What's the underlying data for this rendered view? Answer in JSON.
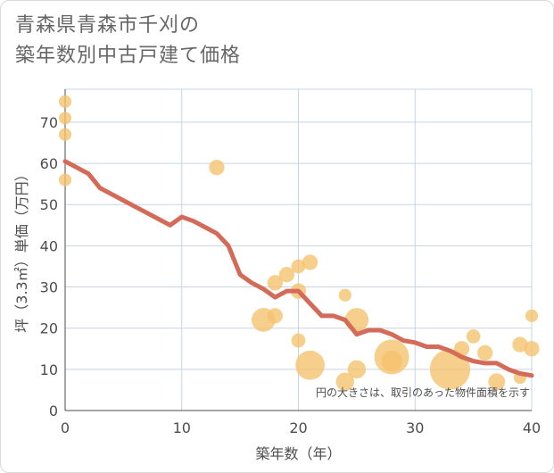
{
  "title_line1": "青森県青森市千刈の",
  "title_line2": "築年数別中古戸建て価格",
  "chart_data": {
    "type": "scatter",
    "title": "青森県青森市千刈の築年数別中古戸建て価格",
    "xlabel": "築年数（年）",
    "ylabel": "坪（3.3㎡）単価（万円）",
    "xlim": [
      0,
      40
    ],
    "ylim": [
      0,
      75
    ],
    "x_ticks": [
      0,
      10,
      20,
      30,
      40
    ],
    "y_ticks": [
      0,
      10,
      20,
      30,
      40,
      50,
      60,
      70
    ],
    "grid": true,
    "annotation": "円の大きさは、取引のあった物件面積を示す",
    "bubble_color": "#f5c16c",
    "line_color": "#d46b58",
    "scatter": [
      {
        "x": 0,
        "y": 75,
        "size": 2
      },
      {
        "x": 0,
        "y": 71,
        "size": 2
      },
      {
        "x": 0,
        "y": 67,
        "size": 2
      },
      {
        "x": 0,
        "y": 56,
        "size": 2
      },
      {
        "x": 13,
        "y": 59,
        "size": 3
      },
      {
        "x": 17,
        "y": 22,
        "size": 6
      },
      {
        "x": 18,
        "y": 23,
        "size": 3
      },
      {
        "x": 18,
        "y": 31,
        "size": 3
      },
      {
        "x": 19,
        "y": 33,
        "size": 3
      },
      {
        "x": 20,
        "y": 35,
        "size": 2.5
      },
      {
        "x": 20,
        "y": 29,
        "size": 3
      },
      {
        "x": 20,
        "y": 17,
        "size": 2.5
      },
      {
        "x": 21,
        "y": 36,
        "size": 3
      },
      {
        "x": 21,
        "y": 11,
        "size": 8
      },
      {
        "x": 24,
        "y": 28,
        "size": 2
      },
      {
        "x": 24,
        "y": 7,
        "size": 4
      },
      {
        "x": 25,
        "y": 22,
        "size": 6
      },
      {
        "x": 25,
        "y": 10,
        "size": 4
      },
      {
        "x": 28,
        "y": 13,
        "size": 10
      },
      {
        "x": 28,
        "y": 12,
        "size": 5
      },
      {
        "x": 33,
        "y": 10,
        "size": 12
      },
      {
        "x": 34,
        "y": 15,
        "size": 3
      },
      {
        "x": 35,
        "y": 18,
        "size": 2.5
      },
      {
        "x": 36,
        "y": 14,
        "size": 3
      },
      {
        "x": 37,
        "y": 7,
        "size": 3.5
      },
      {
        "x": 39,
        "y": 16,
        "size": 3
      },
      {
        "x": 39,
        "y": 8,
        "size": 2
      },
      {
        "x": 40,
        "y": 23,
        "size": 2
      },
      {
        "x": 40,
        "y": 15,
        "size": 3
      }
    ],
    "trend_line": {
      "x": [
        0,
        1,
        2,
        3,
        4,
        5,
        6,
        7,
        8,
        9,
        10,
        11,
        12,
        13,
        14,
        15,
        16,
        17,
        18,
        19,
        20,
        21,
        22,
        23,
        24,
        25,
        26,
        27,
        28,
        29,
        30,
        31,
        32,
        33,
        34,
        35,
        36,
        37,
        38,
        39,
        40
      ],
      "y": [
        60.5,
        59,
        57.5,
        54,
        52.5,
        51,
        49.5,
        48,
        46.5,
        45,
        47,
        46,
        44.5,
        43,
        40,
        33,
        31,
        29.5,
        27.5,
        29,
        29,
        26,
        23,
        23,
        22,
        18.5,
        19.5,
        19.5,
        18.5,
        17,
        16.5,
        15.5,
        15.5,
        14.5,
        13,
        12,
        11.5,
        11.5,
        10,
        9,
        8.5
      ]
    }
  }
}
